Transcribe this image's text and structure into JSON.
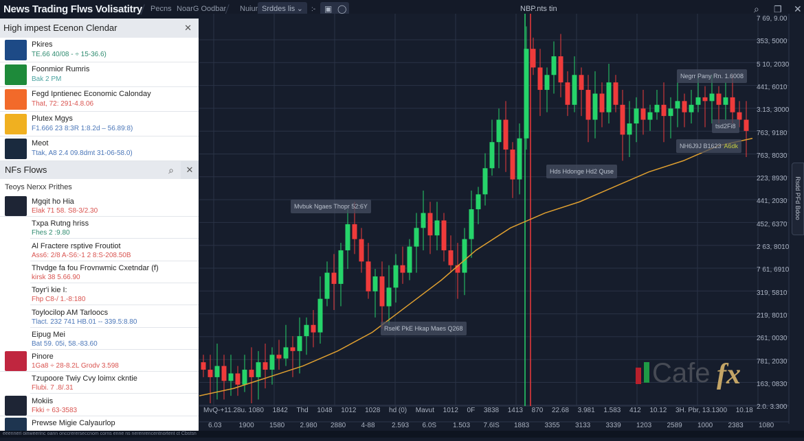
{
  "topbar": {
    "title": "News Trading Flws Volisatitry",
    "menu": [
      "Pecns",
      "NoarG Oodbar",
      "Nuiur"
    ],
    "dropdown_value": "Srddes lis",
    "center_title": "NBP.nts tin",
    "icons": [
      "settings-dash-icon",
      "briefcase-icon",
      "chat-icon",
      "search-icon",
      "window-icon",
      "close-icon"
    ]
  },
  "calendar": {
    "title": "High impest Ecenon Clendar",
    "items": [
      {
        "title": "Pkires",
        "detail": "TE.66 40/08 - ÷ 15-36.6)",
        "color": "#2e8b6f",
        "thumb": "#1d4a86"
      },
      {
        "title": "Foonmior Rumris",
        "detail": "Bak 2 PM",
        "color": "#4aa3a0",
        "thumb": "#1e8a3a"
      },
      {
        "title": "Fegd Ipntienec Economic Calonday",
        "detail": "That, 72: 291-4.8.06",
        "color": "#d9534f",
        "thumb": "#f26a2a"
      },
      {
        "title": "Plutex Mgys",
        "detail": "F1.666 23 8:3R 1:8.2d – 56.89:8)",
        "color": "#4a76b8",
        "thumb": "#f0b020"
      },
      {
        "title": "Meot",
        "detail": "Ttak, A8 2.4 09.8dmt 31-06-58.0)",
        "color": "#4a76b8",
        "thumb": "#1a2a3e"
      }
    ]
  },
  "flows": {
    "title": "NFs Flows",
    "subtitle": "Teoys Nerxx Prithes",
    "items": [
      {
        "title": "Mgqit ho Hia",
        "detail": "Elak 71 58. S8-3/2.30",
        "color": "#d9534f",
        "thumb": "#1e2535"
      },
      {
        "title": "Txpa Rutng hriss",
        "detail": "Fhes 2 :9.80",
        "color": "#2e8b6f",
        "thumb": ""
      },
      {
        "title": "Al Fractere rsptive Froutiot",
        "detail": "Ass6: 2/8 A-S6:-1 2 8:S-208.50B",
        "color": "#d9534f",
        "thumb": ""
      },
      {
        "title": "Thvdge fa fou Frovnwmic Cxetndar (f)",
        "detail": "kirsk 38 5.66.90",
        "color": "#d9534f",
        "thumb": ""
      },
      {
        "title": "Toyr'i kie I:",
        "detail": "Fhp C8-/ 1.-8:180",
        "color": "#d9534f",
        "thumb": ""
      },
      {
        "title": "Toylocilop AM Tarloocs",
        "detail": "Tlact. 232 741 HB.01 -- 339.5:8.80",
        "color": "#4a76b8",
        "thumb": ""
      },
      {
        "title": "Eipug Mei",
        "detail": "Bat 59. 05i, 58.-83.60",
        "color": "#4a76b8",
        "thumb": ""
      },
      {
        "title": "Pinore",
        "detail": "1Ga8 ÷ 28-8.2L Grodv 3.598",
        "color": "#d9534f",
        "thumb": "#c0263f"
      },
      {
        "title": "Tzupoore Twiy Cvy loimx ckntie",
        "detail": "Flubi. 7 .8/.31",
        "color": "#d9534f",
        "thumb": ""
      },
      {
        "title": "Mokiis",
        "detail": "Fkki ÷ 63-3583",
        "color": "#d9534f",
        "thumb": "#1e2535"
      },
      {
        "title": "Prewse Migie Calyaurlop",
        "detail": "",
        "color": "#222",
        "thumb": "#1e3550"
      }
    ]
  },
  "status_text": "eeenneri oinweerinc oann onccrererseccnom corns enne ns nerenrencentnortent ct Cbstsn",
  "chart_data": {
    "type": "candlestick",
    "colors": {
      "up": "#26d46a",
      "down": "#ef3b3b",
      "ma": "#e0a030",
      "background": "#161d2c",
      "grid": "#2a3346"
    },
    "closes": [
      9,
      7,
      10,
      6,
      8,
      5,
      9,
      7,
      11,
      9,
      13,
      12,
      15,
      14,
      18,
      21,
      19,
      28,
      35,
      32,
      41,
      48,
      44,
      38,
      30,
      34,
      26,
      31,
      37,
      35,
      42,
      47,
      51,
      45,
      49,
      41,
      37,
      35,
      44,
      52,
      56,
      63,
      70,
      76,
      68,
      60,
      71,
      95,
      90,
      84,
      88,
      93,
      86,
      80,
      88,
      84,
      76,
      83,
      78,
      86,
      80,
      72,
      75,
      79,
      76,
      78,
      80,
      77,
      79,
      81,
      78,
      80,
      82,
      81,
      83,
      80,
      82,
      78,
      76,
      73
    ],
    "moving_average": [
      2,
      4,
      7,
      10,
      14,
      19,
      26,
      33,
      41,
      47,
      51,
      54,
      58,
      62,
      65,
      69,
      71
    ],
    "y_tick_labels": [
      "7 69, 9.00",
      "353, 5000",
      "5 10, 2030",
      "441, 6010",
      "3.13, 3000",
      "763, 9180",
      "763, 8030",
      "223, 8930",
      "441, 2030",
      "452, 6370",
      "2 63, 8010",
      "7 61, 6910",
      "319, 5810",
      "219, 8010",
      "261, 0030",
      "781, 2030",
      "163, 0830",
      "2.0. 3.300"
    ],
    "x_row1": [
      "MvQ-+11.28u. 1080",
      "1842",
      "Thd",
      "1048",
      "1012",
      "1028",
      "hd (0)",
      "Mavut",
      "1012",
      "0F",
      "3838",
      "1413",
      "870",
      "22.68",
      "3.981",
      "1.583",
      "412",
      "10.12",
      "3H. Pbr, 13.1300",
      "10.18"
    ],
    "x_row2": [
      "6.03",
      "1900",
      "1580",
      "2.980",
      "2880",
      "4-88",
      "2.593",
      "6.0S",
      "1.503",
      "7.6IS",
      "1883",
      "3355",
      "3133",
      "3339",
      "1203",
      "2589",
      "1000",
      "2383",
      "1080"
    ],
    "annotations": [
      "Mvbuk Ngaes Thopr 52:6Y",
      "Rsel€ PkE Hkap Maes Q268",
      "Hds Hdonge Hd2 Quse",
      "Negrr Pany Rn. 1.6008",
      "tsd2Fi8",
      "NH6J9J B1623",
      "A6dk"
    ],
    "side_tab": "Rsdd PFd Bdoo",
    "watermark": "Cafefx"
  }
}
